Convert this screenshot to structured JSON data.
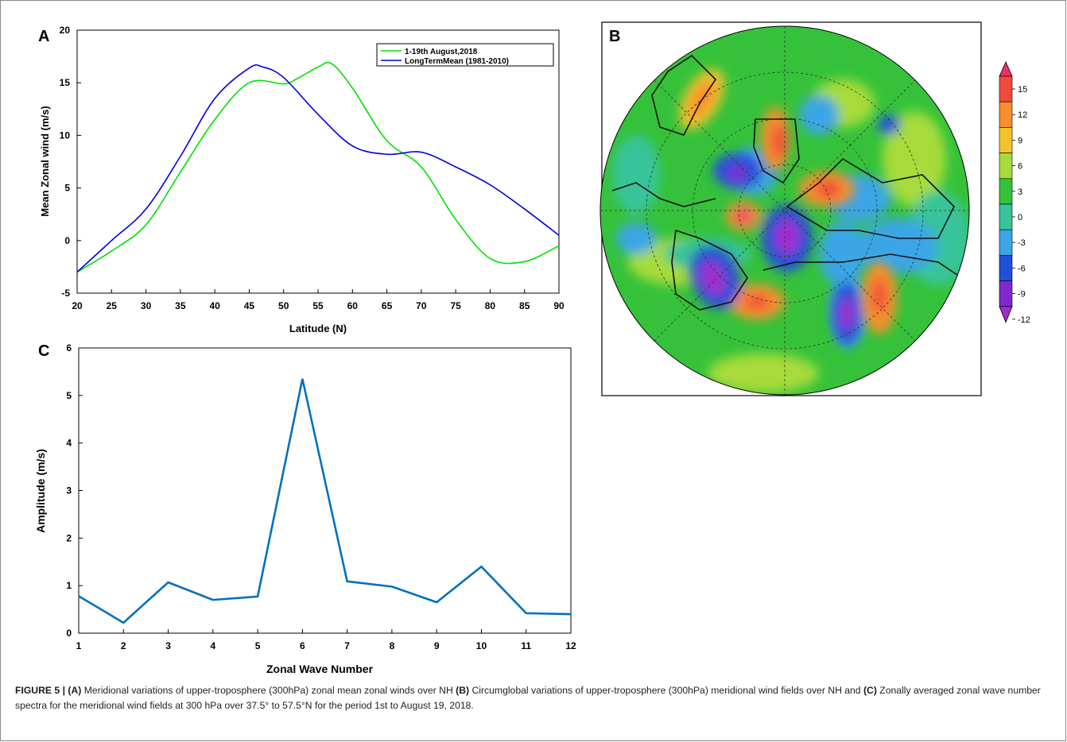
{
  "chart_data": [
    {
      "panel": "A",
      "type": "line",
      "xlabel": "Latitude (N)",
      "ylabel": "Mean Zonal wind (m/s)",
      "xlim": [
        20,
        90
      ],
      "ylim": [
        -5,
        20
      ],
      "xticks": [
        20,
        25,
        30,
        35,
        40,
        45,
        50,
        55,
        60,
        65,
        70,
        75,
        80,
        85,
        90
      ],
      "yticks": [
        -5,
        0,
        5,
        10,
        15,
        20
      ],
      "legend_position": "top-right",
      "series": [
        {
          "name": "1-19th August,2018",
          "color": "#00e000",
          "x": [
            20,
            25,
            30,
            35,
            40,
            45,
            50,
            52,
            55,
            57,
            60,
            65,
            70,
            75,
            80,
            85,
            90
          ],
          "y": [
            -3.0,
            -1.0,
            1.5,
            6.5,
            11.5,
            15.0,
            14.9,
            15.4,
            16.5,
            16.8,
            14.5,
            9.5,
            7.0,
            2.0,
            -1.7,
            -2.0,
            -0.5
          ]
        },
        {
          "name": "LongTermMean (1981-2010)",
          "color": "#0000e0",
          "x": [
            20,
            25,
            30,
            35,
            40,
            45,
            47,
            50,
            55,
            60,
            65,
            70,
            75,
            80,
            85,
            90
          ],
          "y": [
            -3.0,
            0.0,
            3.0,
            8.0,
            13.5,
            16.4,
            16.5,
            15.5,
            12.0,
            9.0,
            8.2,
            8.4,
            7.0,
            5.3,
            3.0,
            0.5
          ]
        }
      ]
    },
    {
      "panel": "B",
      "type": "heatmap",
      "projection": "polar-stereographic",
      "colorbar_ticks": [
        "15",
        "12",
        "9",
        "6",
        "3",
        "0",
        "-3",
        "-6",
        "-9",
        "-12"
      ],
      "colorbar_colors": [
        "#e8306a",
        "#f24a3a",
        "#f7902a",
        "#f3c32c",
        "#a6db3a",
        "#35c23a",
        "#37c49a",
        "#3aa6e6",
        "#2050d8",
        "#8028d0",
        "#a32cd0"
      ],
      "note": "contour fill of 300 hPa meridional wind"
    },
    {
      "panel": "C",
      "type": "line",
      "xlabel": "Zonal Wave Number",
      "ylabel": "Amplitude (m/s)",
      "xlim": [
        1,
        12
      ],
      "ylim": [
        0,
        6
      ],
      "xticks": [
        1,
        2,
        3,
        4,
        5,
        6,
        7,
        8,
        9,
        10,
        11,
        12
      ],
      "yticks": [
        0,
        1,
        2,
        3,
        4,
        5,
        6
      ],
      "series": [
        {
          "color": "#0070c0",
          "x": [
            1,
            2,
            3,
            4,
            5,
            6,
            7,
            8,
            9,
            10,
            11,
            12
          ],
          "y": [
            0.78,
            0.22,
            1.07,
            0.7,
            0.77,
            5.35,
            1.09,
            0.98,
            0.65,
            1.4,
            0.42,
            0.4
          ]
        }
      ]
    }
  ],
  "panel_labels": {
    "a": "A",
    "b": "B",
    "c": "C"
  },
  "caption": {
    "figure_label": "FIGURE 5 |",
    "a_label": "(A)",
    "a_text": "Meridional variations of upper-troposphere (300hPa) zonal mean zonal winds over NH",
    "b_label": "(B)",
    "b_text": "Circumglobal variations of upper-troposphere (300hPa) meridional wind fields over NH and",
    "c_label": "(C)",
    "c_text": "Zonally averaged zonal wave number spectra for the meridional wind fields at 300 hPa over 37.5° to 57.5°N for the period 1st to August 19, 2018."
  }
}
